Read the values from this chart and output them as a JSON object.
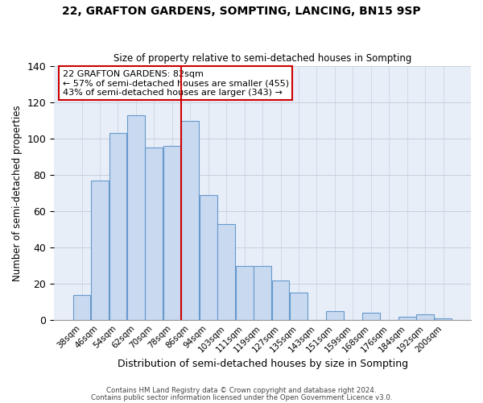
{
  "title": "22, GRAFTON GARDENS, SOMPTING, LANCING, BN15 9SP",
  "subtitle": "Size of property relative to semi-detached houses in Sompting",
  "xlabel": "Distribution of semi-detached houses by size in Sompting",
  "ylabel": "Number of semi-detached properties",
  "bar_labels": [
    "38sqm",
    "46sqm",
    "54sqm",
    "62sqm",
    "70sqm",
    "78sqm",
    "86sqm",
    "94sqm",
    "103sqm",
    "111sqm",
    "119sqm",
    "127sqm",
    "135sqm",
    "143sqm",
    "151sqm",
    "159sqm",
    "168sqm",
    "176sqm",
    "184sqm",
    "192sqm",
    "200sqm"
  ],
  "bar_values": [
    14,
    77,
    103,
    113,
    95,
    96,
    110,
    69,
    53,
    30,
    30,
    22,
    15,
    0,
    5,
    0,
    4,
    0,
    2,
    3,
    1
  ],
  "bar_color": "#c8d9f0",
  "bar_edge_color": "#6699cc",
  "vline_color": "#cc0000",
  "ylim": [
    0,
    140
  ],
  "yticks": [
    0,
    20,
    40,
    60,
    80,
    100,
    120,
    140
  ],
  "annotation_title": "22 GRAFTON GARDENS: 82sqm",
  "annotation_line1": "← 57% of semi-detached houses are smaller (455)",
  "annotation_line2": "43% of semi-detached houses are larger (343) →",
  "footer1": "Contains HM Land Registry data © Crown copyright and database right 2024.",
  "footer2": "Contains public sector information licensed under the Open Government Licence v3.0.",
  "background_color": "#ffffff",
  "plot_background": "#e8eef8"
}
